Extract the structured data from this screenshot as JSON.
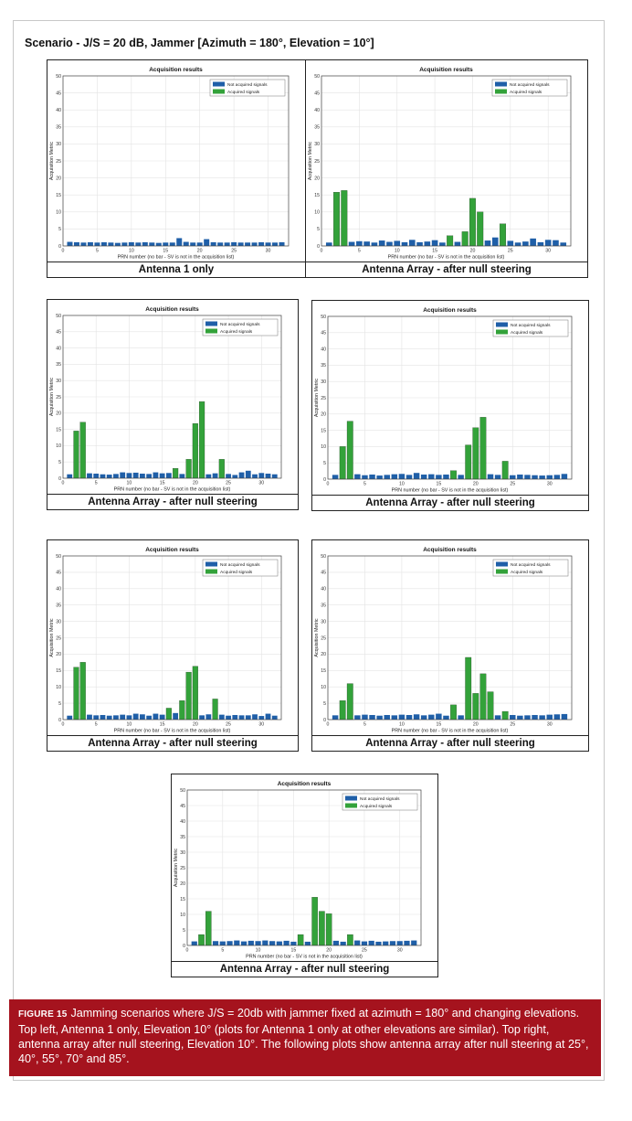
{
  "scenario_title": "Scenario - J/S = 20 dB, Jammer [Azimuth = 180°, Elevation = 10°]",
  "caption": {
    "label": "FIGURE 15",
    "text": "Jamming scenarios where J/S = 20db with jammer fixed at azimuth = 180° and changing elevations. Top left, Antenna 1 only, Elevation 10° (plots for Antenna 1 only at other elevations are similar). Top right, antenna array after null steering, Elevation 10°. The following plots show antenna array after null steering at  25°, 40°, 55°, 70° and 85°."
  },
  "colors": {
    "not_acquired": "#1f5fa8",
    "acquired": "#33a23a",
    "caption_bg": "#a5131e"
  },
  "chart_data": [
    {
      "type": "bar",
      "panel_label": "Antenna 1 only",
      "title": "Acquisition results",
      "xlabel": "PRN number (no bar - SV is not in the acquisition list)",
      "ylabel": "Acquisition Metric",
      "xlim": [
        0,
        33
      ],
      "ylim": [
        0,
        50
      ],
      "xticks": [
        0,
        5,
        10,
        15,
        20,
        25,
        30
      ],
      "yticks": [
        0,
        5,
        10,
        15,
        20,
        25,
        30,
        35,
        40,
        45,
        50
      ],
      "legend": [
        "Not acquired signals",
        "Acquired signals"
      ],
      "legend_position": "top-right",
      "grid": true,
      "x": [
        1,
        2,
        3,
        4,
        5,
        6,
        7,
        8,
        9,
        10,
        11,
        12,
        13,
        14,
        15,
        16,
        17,
        18,
        19,
        20,
        21,
        22,
        23,
        24,
        25,
        26,
        27,
        28,
        29,
        30,
        31,
        32
      ],
      "values": [
        1.2,
        1.1,
        1.0,
        1.1,
        1.0,
        1.1,
        1.0,
        0.9,
        1.0,
        1.1,
        1.0,
        1.1,
        1.0,
        0.9,
        1.0,
        1.0,
        2.3,
        1.2,
        1.0,
        1.0,
        2.0,
        1.1,
        1.0,
        1.0,
        1.1,
        1.0,
        1.0,
        1.0,
        1.1,
        1.0,
        1.0,
        1.1
      ],
      "acquired": []
    },
    {
      "type": "bar",
      "panel_label": "Antenna Array - after null steering",
      "title": "Acquisition results",
      "xlabel": "PRN number (no bar - SV is not in the acquisition list)",
      "ylabel": "Acquisition Metric",
      "xlim": [
        0,
        33
      ],
      "ylim": [
        0,
        50
      ],
      "xticks": [
        0,
        5,
        10,
        15,
        20,
        25,
        30
      ],
      "yticks": [
        0,
        5,
        10,
        15,
        20,
        25,
        30,
        35,
        40,
        45,
        50
      ],
      "legend": [
        "Not acquired signals",
        "Acquired signals"
      ],
      "legend_position": "top-right",
      "grid": true,
      "x": [
        1,
        2,
        3,
        4,
        5,
        6,
        7,
        8,
        9,
        10,
        11,
        12,
        13,
        14,
        15,
        16,
        17,
        18,
        19,
        20,
        21,
        22,
        23,
        24,
        25,
        26,
        27,
        28,
        29,
        30,
        31,
        32
      ],
      "values": [
        1.0,
        15.8,
        16.3,
        1.2,
        1.4,
        1.3,
        1.0,
        1.6,
        1.2,
        1.5,
        1.1,
        1.8,
        1.1,
        1.3,
        1.7,
        1.0,
        3.0,
        1.2,
        4.2,
        14.0,
        10.0,
        1.6,
        2.5,
        6.5,
        1.5,
        1.0,
        1.3,
        2.2,
        1.1,
        1.8,
        1.7,
        1.0
      ],
      "acquired": [
        2,
        3,
        17,
        19,
        20,
        21,
        24
      ]
    },
    {
      "type": "bar",
      "panel_label": "Antenna Array - after null steering",
      "title": "Acquisition results",
      "xlabel": "PRN number (no bar - SV is not in the acquisition list)",
      "ylabel": "Acquisition Metric",
      "xlim": [
        0,
        33
      ],
      "ylim": [
        0,
        50
      ],
      "xticks": [
        0,
        5,
        10,
        15,
        20,
        25,
        30
      ],
      "yticks": [
        0,
        5,
        10,
        15,
        20,
        25,
        30,
        35,
        40,
        45,
        50
      ],
      "legend": [
        "Not acquired signals",
        "Acquired signals"
      ],
      "legend_position": "top-right",
      "grid": true,
      "x": [
        1,
        2,
        3,
        4,
        5,
        6,
        7,
        8,
        9,
        10,
        11,
        12,
        13,
        14,
        15,
        16,
        17,
        18,
        19,
        20,
        21,
        22,
        23,
        24,
        25,
        26,
        27,
        28,
        29,
        30,
        31,
        32
      ],
      "values": [
        1.2,
        14.5,
        17.2,
        1.5,
        1.4,
        1.2,
        1.1,
        1.3,
        1.8,
        1.6,
        1.7,
        1.4,
        1.3,
        1.8,
        1.5,
        1.6,
        3.0,
        1.3,
        5.8,
        16.8,
        23.5,
        1.2,
        1.5,
        5.8,
        1.3,
        1.0,
        1.8,
        2.3,
        1.2,
        1.6,
        1.4,
        1.2
      ],
      "acquired": [
        2,
        3,
        17,
        19,
        20,
        21,
        24
      ]
    },
    {
      "type": "bar",
      "panel_label": "Antenna Array - after null steering",
      "title": "Acquisition results",
      "xlabel": "PRN number (no bar - SV is not in the acquisition list)",
      "ylabel": "Acquisition Metric",
      "xlim": [
        0,
        33
      ],
      "ylim": [
        0,
        50
      ],
      "xticks": [
        0,
        5,
        10,
        15,
        20,
        25,
        30
      ],
      "yticks": [
        0,
        5,
        10,
        15,
        20,
        25,
        30,
        35,
        40,
        45,
        50
      ],
      "legend": [
        "Not acquired signals",
        "Acquired signals"
      ],
      "legend_position": "top-right",
      "grid": true,
      "x": [
        1,
        2,
        3,
        4,
        5,
        6,
        7,
        8,
        9,
        10,
        11,
        12,
        13,
        14,
        15,
        16,
        17,
        18,
        19,
        20,
        21,
        22,
        23,
        24,
        25,
        26,
        27,
        28,
        29,
        30,
        31,
        32
      ],
      "values": [
        1.3,
        10.0,
        17.8,
        1.5,
        1.2,
        1.4,
        1.1,
        1.3,
        1.5,
        1.6,
        1.3,
        1.9,
        1.4,
        1.5,
        1.3,
        1.4,
        2.6,
        1.3,
        10.5,
        15.8,
        19.0,
        1.5,
        1.3,
        5.5,
        1.2,
        1.4,
        1.3,
        1.2,
        1.1,
        1.2,
        1.3,
        1.6
      ],
      "acquired": [
        2,
        3,
        17,
        19,
        20,
        21,
        24
      ]
    },
    {
      "type": "bar",
      "panel_label": "Antenna Array - after null steering",
      "title": "Acquisition results",
      "xlabel": "PRN number (no bar - SV is not in the acquisition list)",
      "ylabel": "Acquisition Metric",
      "xlim": [
        0,
        33
      ],
      "ylim": [
        0,
        50
      ],
      "xticks": [
        0,
        5,
        10,
        15,
        20,
        25,
        30
      ],
      "yticks": [
        0,
        5,
        10,
        15,
        20,
        25,
        30,
        35,
        40,
        45,
        50
      ],
      "legend": [
        "Not acquired signals",
        "Acquired signals"
      ],
      "legend_position": "top-right",
      "grid": true,
      "x": [
        1,
        2,
        3,
        4,
        5,
        6,
        7,
        8,
        9,
        10,
        11,
        12,
        13,
        14,
        15,
        16,
        17,
        18,
        19,
        20,
        21,
        22,
        23,
        24,
        25,
        26,
        27,
        28,
        29,
        30,
        31,
        32
      ],
      "values": [
        1.2,
        16.0,
        17.5,
        1.5,
        1.3,
        1.4,
        1.2,
        1.3,
        1.5,
        1.3,
        1.8,
        1.6,
        1.2,
        1.8,
        1.5,
        3.5,
        2.0,
        5.8,
        14.5,
        16.3,
        1.3,
        1.6,
        6.3,
        1.5,
        1.2,
        1.4,
        1.3,
        1.3,
        1.6,
        1.1,
        1.8,
        1.2
      ],
      "acquired": [
        2,
        3,
        16,
        18,
        19,
        20,
        23
      ]
    },
    {
      "type": "bar",
      "panel_label": "Antenna Array - after null steering",
      "title": "Acquisition results",
      "xlabel": "PRN number (no bar - SV is not in the acquisition list)",
      "ylabel": "Acquisition Metric",
      "xlim": [
        0,
        33
      ],
      "ylim": [
        0,
        50
      ],
      "xticks": [
        0,
        5,
        10,
        15,
        20,
        25,
        30
      ],
      "yticks": [
        0,
        5,
        10,
        15,
        20,
        25,
        30,
        35,
        40,
        45,
        50
      ],
      "legend": [
        "Not acquired signals",
        "Acquired signals"
      ],
      "legend_position": "top-right",
      "grid": true,
      "x": [
        1,
        2,
        3,
        4,
        5,
        6,
        7,
        8,
        9,
        10,
        11,
        12,
        13,
        14,
        15,
        16,
        17,
        18,
        19,
        20,
        21,
        22,
        23,
        24,
        25,
        26,
        27,
        28,
        29,
        30,
        31,
        32
      ],
      "values": [
        1.3,
        5.8,
        11.0,
        1.3,
        1.5,
        1.4,
        1.2,
        1.4,
        1.3,
        1.5,
        1.4,
        1.6,
        1.3,
        1.5,
        1.8,
        1.2,
        4.5,
        1.3,
        19.0,
        8.0,
        14.0,
        8.5,
        1.3,
        2.5,
        1.4,
        1.2,
        1.3,
        1.4,
        1.3,
        1.5,
        1.6,
        1.7
      ],
      "acquired": [
        2,
        3,
        17,
        19,
        20,
        21,
        22,
        24
      ]
    },
    {
      "type": "bar",
      "panel_label": "Antenna Array - after null steering",
      "title": "Acquisition results",
      "xlabel": "PRN number (no bar - SV is not in the acquisition list)",
      "ylabel": "Acquisition Metric",
      "xlim": [
        0,
        33
      ],
      "ylim": [
        0,
        50
      ],
      "xticks": [
        0,
        5,
        10,
        15,
        20,
        25,
        30
      ],
      "yticks": [
        0,
        5,
        10,
        15,
        20,
        25,
        30,
        35,
        40,
        45,
        50
      ],
      "legend": [
        "Not acquired signals",
        "Acquired signals"
      ],
      "legend_position": "top-right",
      "grid": true,
      "x": [
        1,
        2,
        3,
        4,
        5,
        6,
        7,
        8,
        9,
        10,
        11,
        12,
        13,
        14,
        15,
        16,
        17,
        18,
        19,
        20,
        21,
        22,
        23,
        24,
        25,
        26,
        27,
        28,
        29,
        30,
        31,
        32
      ],
      "values": [
        1.3,
        3.5,
        11.0,
        1.4,
        1.3,
        1.4,
        1.6,
        1.3,
        1.5,
        1.4,
        1.6,
        1.4,
        1.3,
        1.5,
        1.2,
        3.5,
        1.2,
        15.5,
        11.0,
        10.2,
        1.5,
        1.2,
        3.5,
        1.6,
        1.3,
        1.5,
        1.2,
        1.3,
        1.4,
        1.4,
        1.5,
        1.6
      ],
      "acquired": [
        2,
        3,
        16,
        18,
        19,
        20,
        23
      ]
    }
  ]
}
